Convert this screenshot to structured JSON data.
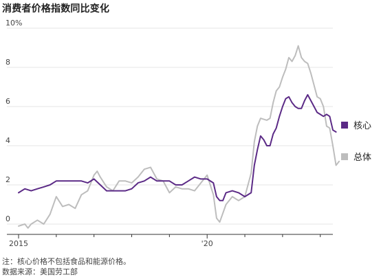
{
  "title": "消费者价格指数同比变化",
  "notes": [
    "注：核心价格不包括食品和能源价格。",
    "数据来源：美国劳工部"
  ],
  "colors": {
    "core": "#5b2a86",
    "headline": "#bdbdbd",
    "grid": "#e4e4e4",
    "axis": "#333333"
  },
  "chart_data": {
    "type": "line",
    "title": "消费者价格指数同比变化",
    "xlabel": "",
    "ylabel": "",
    "ylim": [
      0,
      10
    ],
    "y_ticks": [
      0,
      2,
      4,
      6,
      8,
      10
    ],
    "y_tick_labels": [
      "0",
      "2",
      "4",
      "6",
      "8",
      "10%"
    ],
    "x_tick_labels": [
      {
        "date": "2015-01",
        "label": "2015"
      },
      {
        "date": "2020-01",
        "label": "'20"
      }
    ],
    "x_range": [
      "2015-01",
      "2023-05"
    ],
    "grid": true,
    "legend_placement": "right, at line ends",
    "series": [
      {
        "name": "核心",
        "color": "#5b2a86",
        "points": [
          [
            "2015-01",
            1.6
          ],
          [
            "2015-03",
            1.8
          ],
          [
            "2015-05",
            1.7
          ],
          [
            "2015-07",
            1.8
          ],
          [
            "2015-09",
            1.9
          ],
          [
            "2015-11",
            2.0
          ],
          [
            "2016-01",
            2.2
          ],
          [
            "2016-03",
            2.2
          ],
          [
            "2016-05",
            2.2
          ],
          [
            "2016-07",
            2.2
          ],
          [
            "2016-09",
            2.2
          ],
          [
            "2016-11",
            2.1
          ],
          [
            "2017-01",
            2.3
          ],
          [
            "2017-03",
            2.0
          ],
          [
            "2017-05",
            1.7
          ],
          [
            "2017-07",
            1.7
          ],
          [
            "2017-09",
            1.7
          ],
          [
            "2017-11",
            1.7
          ],
          [
            "2018-01",
            1.8
          ],
          [
            "2018-03",
            2.1
          ],
          [
            "2018-05",
            2.2
          ],
          [
            "2018-07",
            2.4
          ],
          [
            "2018-09",
            2.2
          ],
          [
            "2018-11",
            2.2
          ],
          [
            "2019-01",
            2.2
          ],
          [
            "2019-03",
            2.0
          ],
          [
            "2019-05",
            2.0
          ],
          [
            "2019-07",
            2.2
          ],
          [
            "2019-09",
            2.4
          ],
          [
            "2019-11",
            2.3
          ],
          [
            "2020-01",
            2.3
          ],
          [
            "2020-03",
            2.1
          ],
          [
            "2020-04",
            1.4
          ],
          [
            "2020-05",
            1.2
          ],
          [
            "2020-06",
            1.2
          ],
          [
            "2020-07",
            1.6
          ],
          [
            "2020-09",
            1.7
          ],
          [
            "2020-11",
            1.6
          ],
          [
            "2021-01",
            1.4
          ],
          [
            "2021-03",
            1.6
          ],
          [
            "2021-04",
            3.0
          ],
          [
            "2021-05",
            3.8
          ],
          [
            "2021-06",
            4.5
          ],
          [
            "2021-07",
            4.3
          ],
          [
            "2021-08",
            4.0
          ],
          [
            "2021-09",
            4.0
          ],
          [
            "2021-10",
            4.6
          ],
          [
            "2021-11",
            4.9
          ],
          [
            "2021-12",
            5.5
          ],
          [
            "2022-01",
            6.0
          ],
          [
            "2022-02",
            6.4
          ],
          [
            "2022-03",
            6.5
          ],
          [
            "2022-04",
            6.2
          ],
          [
            "2022-05",
            6.0
          ],
          [
            "2022-06",
            5.9
          ],
          [
            "2022-07",
            5.9
          ],
          [
            "2022-08",
            6.3
          ],
          [
            "2022-09",
            6.6
          ],
          [
            "2022-10",
            6.3
          ],
          [
            "2022-11",
            6.0
          ],
          [
            "2022-12",
            5.7
          ],
          [
            "2023-01",
            5.6
          ],
          [
            "2023-02",
            5.5
          ],
          [
            "2023-03",
            5.6
          ],
          [
            "2023-04",
            5.5
          ],
          [
            "2023-05",
            4.8
          ],
          [
            "2023-06",
            4.7
          ]
        ]
      },
      {
        "name": "总体",
        "color": "#bdbdbd",
        "points": [
          [
            "2015-01",
            -0.1
          ],
          [
            "2015-03",
            0.0
          ],
          [
            "2015-04",
            -0.2
          ],
          [
            "2015-05",
            0.0
          ],
          [
            "2015-07",
            0.2
          ],
          [
            "2015-09",
            0.0
          ],
          [
            "2015-11",
            0.5
          ],
          [
            "2016-01",
            1.4
          ],
          [
            "2016-03",
            0.9
          ],
          [
            "2016-05",
            1.0
          ],
          [
            "2016-07",
            0.8
          ],
          [
            "2016-09",
            1.5
          ],
          [
            "2016-11",
            1.7
          ],
          [
            "2017-01",
            2.5
          ],
          [
            "2017-02",
            2.7
          ],
          [
            "2017-03",
            2.4
          ],
          [
            "2017-05",
            1.9
          ],
          [
            "2017-07",
            1.7
          ],
          [
            "2017-09",
            2.2
          ],
          [
            "2017-11",
            2.2
          ],
          [
            "2018-01",
            2.1
          ],
          [
            "2018-03",
            2.4
          ],
          [
            "2018-05",
            2.8
          ],
          [
            "2018-07",
            2.9
          ],
          [
            "2018-09",
            2.3
          ],
          [
            "2018-11",
            2.2
          ],
          [
            "2019-01",
            1.6
          ],
          [
            "2019-03",
            1.9
          ],
          [
            "2019-05",
            1.8
          ],
          [
            "2019-07",
            1.8
          ],
          [
            "2019-09",
            1.7
          ],
          [
            "2019-11",
            2.1
          ],
          [
            "2020-01",
            2.5
          ],
          [
            "2020-03",
            1.5
          ],
          [
            "2020-04",
            0.3
          ],
          [
            "2020-05",
            0.1
          ],
          [
            "2020-07",
            1.0
          ],
          [
            "2020-09",
            1.4
          ],
          [
            "2020-11",
            1.2
          ],
          [
            "2021-01",
            1.4
          ],
          [
            "2021-03",
            2.6
          ],
          [
            "2021-04",
            4.2
          ],
          [
            "2021-05",
            5.0
          ],
          [
            "2021-06",
            5.4
          ],
          [
            "2021-08",
            5.3
          ],
          [
            "2021-09",
            5.4
          ],
          [
            "2021-10",
            6.2
          ],
          [
            "2021-11",
            6.8
          ],
          [
            "2021-12",
            7.0
          ],
          [
            "2022-01",
            7.5
          ],
          [
            "2022-02",
            7.9
          ],
          [
            "2022-03",
            8.5
          ],
          [
            "2022-04",
            8.3
          ],
          [
            "2022-05",
            8.6
          ],
          [
            "2022-06",
            9.1
          ],
          [
            "2022-07",
            8.5
          ],
          [
            "2022-08",
            8.3
          ],
          [
            "2022-09",
            8.2
          ],
          [
            "2022-10",
            7.7
          ],
          [
            "2022-11",
            7.1
          ],
          [
            "2022-12",
            6.5
          ],
          [
            "2023-01",
            6.4
          ],
          [
            "2023-02",
            6.0
          ],
          [
            "2023-03",
            5.0
          ],
          [
            "2023-04",
            4.9
          ],
          [
            "2023-05",
            4.0
          ],
          [
            "2023-06",
            3.0
          ],
          [
            "2023-07",
            3.2
          ]
        ]
      }
    ]
  }
}
